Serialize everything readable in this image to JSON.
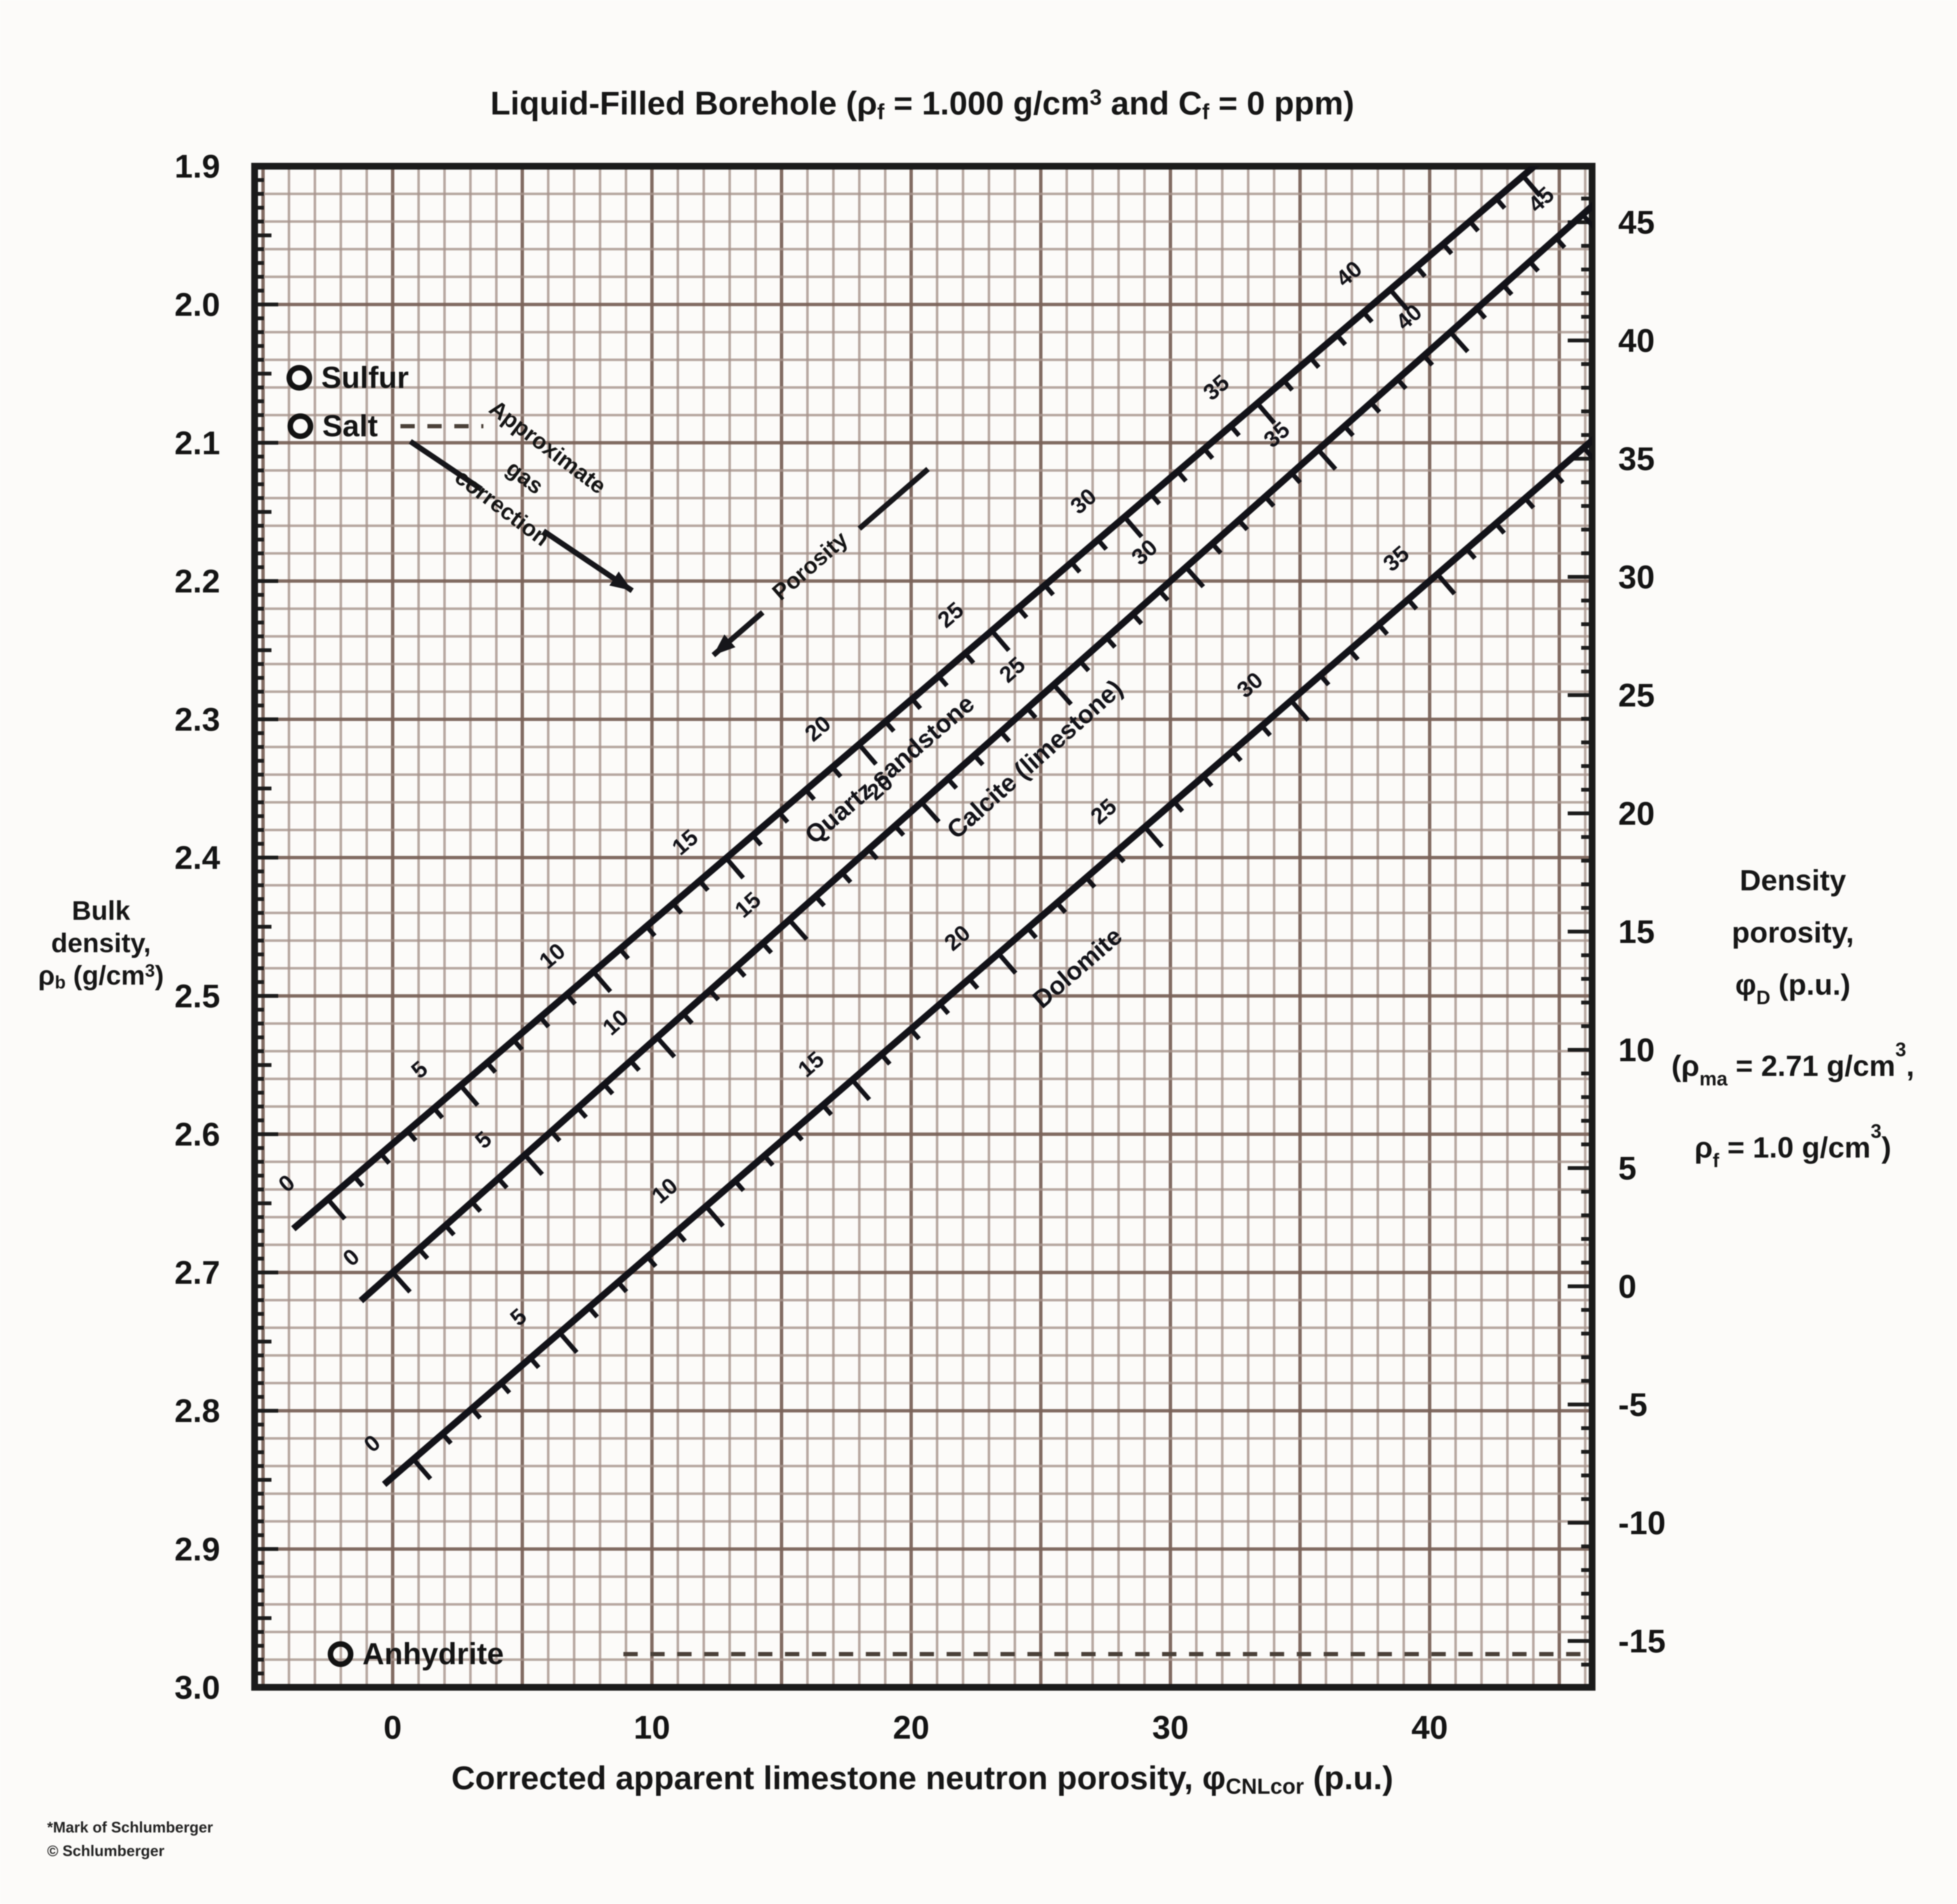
{
  "title_parts": {
    "p1": "Liquid-Filled Borehole (ρ",
    "s1": "f",
    "p2": " = 1.000 g/cm",
    "sup1": "3",
    "p3": " and C",
    "s2": "f",
    "p4": " = 0 ppm)"
  },
  "x_title_parts": {
    "p1": "Corrected apparent limestone neutron porosity, φ",
    "s1": "CNLcor",
    "p2": " (p.u.)"
  },
  "left_title": {
    "l1": "Bulk",
    "l2": "density,",
    "l3a": "ρ",
    "l3s": "b",
    "l3b": " (g/cm",
    "l3sup": "3",
    "l3c": ")"
  },
  "right_title": {
    "l1": "Density",
    "l2": "porosity,",
    "l3a": "φ",
    "l3s": "D",
    "l3b": " (p.u.)",
    "l4a": "(ρ",
    "l4s": "ma",
    "l4b": " = 2.71 g/cm",
    "l4sup": "3",
    "l4c": ",",
    "l5a": "ρ",
    "l5s": "f",
    "l5b": " = 1.0 g/cm",
    "l5sup": "3",
    "l5c": ")"
  },
  "footnote": [
    "*Mark of Schlumberger",
    "© Schlumberger"
  ],
  "chart_data": {
    "type": "line",
    "title": "Liquid-Filled Borehole (ρf = 1.000 g/cm³ and Cf = 0 ppm)",
    "x_axis": {
      "label": "Corrected apparent limestone neutron porosity, φCNLcor (p.u.)",
      "ticks": [
        0,
        10,
        20,
        30,
        40
      ],
      "range": [
        -5.33,
        46.27
      ],
      "grid_step": 1
    },
    "y_axis_left": {
      "label": "Bulk density, ρb (g/cm³)",
      "ticks": [
        "1.9",
        "2.0",
        "2.1",
        "2.2",
        "2.3",
        "2.4",
        "2.5",
        "2.6",
        "2.7",
        "2.8",
        "2.9",
        "3.0"
      ],
      "range": [
        1.9,
        3.0
      ],
      "grid_step": 0.02
    },
    "y_axis_right": {
      "label": "Density porosity, φD (p.u.) (ρma = 2.71 g/cm³, ρf = 1.0 g/cm³)",
      "ticks": [
        45,
        40,
        35,
        30,
        25,
        20,
        15,
        10,
        5,
        0,
        -5,
        -10,
        -15
      ],
      "rho_ma": 2.71,
      "rho_f": 1.0
    },
    "series": [
      {
        "name": "Quartz sandstone",
        "phi_ref": [
          0,
          45
        ],
        "x_at_ref": [
          -2.5,
          43.6
        ],
        "rho_at_ref": [
          2.647,
          1.907
        ],
        "tick_step": 1,
        "label_step": 5,
        "label_max": 40,
        "draw_phi": [
          -1.3,
          47.5
        ],
        "name_anchor_phi": 20.2,
        "name_offset": 92
      },
      {
        "name": "Calcite (limestone)",
        "phi_ref": [
          0,
          40
        ],
        "x_at_ref": [
          0.0,
          40.8
        ],
        "rho_at_ref": [
          2.7,
          2.02
        ],
        "tick_step": 1,
        "label_step": 5,
        "label_max": 45,
        "draw_phi": [
          -1.2,
          47.0
        ],
        "name_anchor_phi": 23.2,
        "name_offset": 102
      },
      {
        "name": "Dolomite",
        "phi_ref": [
          0,
          35
        ],
        "x_at_ref": [
          0.8,
          40.3
        ],
        "rho_at_ref": [
          2.835,
          2.195
        ],
        "tick_step": 1,
        "label_step": 5,
        "label_max": 35,
        "draw_phi": [
          -1.0,
          42.0
        ],
        "name_anchor_phi": 21.3,
        "name_offset": 148
      }
    ],
    "reference_points": [
      {
        "name": "Sulfur",
        "x": -3.6,
        "rho": 2.053
      },
      {
        "name": "Salt",
        "x": -3.56,
        "rho": 2.088,
        "dash_x": [
          0.3,
          3.5
        ]
      },
      {
        "name": "Anhydrite",
        "x": -2.01,
        "rho": 2.976,
        "dash_x": [
          8.9,
          46.27
        ]
      }
    ],
    "annotations": [
      {
        "id": "gas-correction",
        "text": [
          "Approximate",
          "gas",
          "correction"
        ],
        "angle": 37,
        "text_center": [
          5.1,
          2.125
        ],
        "from": [
          0.68,
          2.099
        ],
        "to": [
          9.24,
          2.207
        ],
        "gap": [
          0.32,
          0.6
        ],
        "head_at": "end"
      },
      {
        "id": "porosity",
        "text": [
          "Porosity"
        ],
        "angle": -41,
        "text_center": [
          16.1,
          2.189
        ],
        "from": [
          12.37,
          2.2536
        ],
        "to": [
          20.65,
          2.119
        ],
        "gap": [
          0.23,
          0.68
        ],
        "head_at": "start"
      }
    ]
  }
}
